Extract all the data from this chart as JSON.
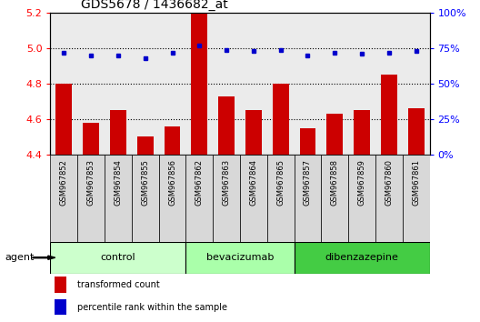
{
  "title": "GDS5678 / 1436682_at",
  "samples": [
    "GSM967852",
    "GSM967853",
    "GSM967854",
    "GSM967855",
    "GSM967856",
    "GSM967862",
    "GSM967863",
    "GSM967864",
    "GSM967865",
    "GSM967857",
    "GSM967858",
    "GSM967859",
    "GSM967860",
    "GSM967861"
  ],
  "transformed_count": [
    4.8,
    4.58,
    4.65,
    4.5,
    4.56,
    5.2,
    4.73,
    4.65,
    4.8,
    4.55,
    4.63,
    4.65,
    4.85,
    4.66
  ],
  "percentile_rank": [
    72,
    70,
    70,
    68,
    72,
    77,
    74,
    73,
    74,
    70,
    72,
    71,
    72,
    73
  ],
  "groups": [
    {
      "name": "control",
      "start": 0,
      "end": 5
    },
    {
      "name": "bevacizumab",
      "start": 5,
      "end": 9
    },
    {
      "name": "dibenzazepine",
      "start": 9,
      "end": 14
    }
  ],
  "group_colors": [
    "#ccffcc",
    "#aaffaa",
    "#44cc44"
  ],
  "ylim_left": [
    4.4,
    5.2
  ],
  "ylim_right": [
    0,
    100
  ],
  "yticks_left": [
    4.4,
    4.6,
    4.8,
    5.0,
    5.2
  ],
  "yticks_right": [
    0,
    25,
    50,
    75,
    100
  ],
  "bar_color": "#cc0000",
  "dot_color": "#0000cc",
  "col_bg_color": "#d8d8d8",
  "agent_label": "agent",
  "legend_bar": "transformed count",
  "legend_dot": "percentile rank within the sample",
  "title_fontsize": 10,
  "axis_fontsize": 8,
  "tick_fontsize": 7,
  "sample_fontsize": 6
}
